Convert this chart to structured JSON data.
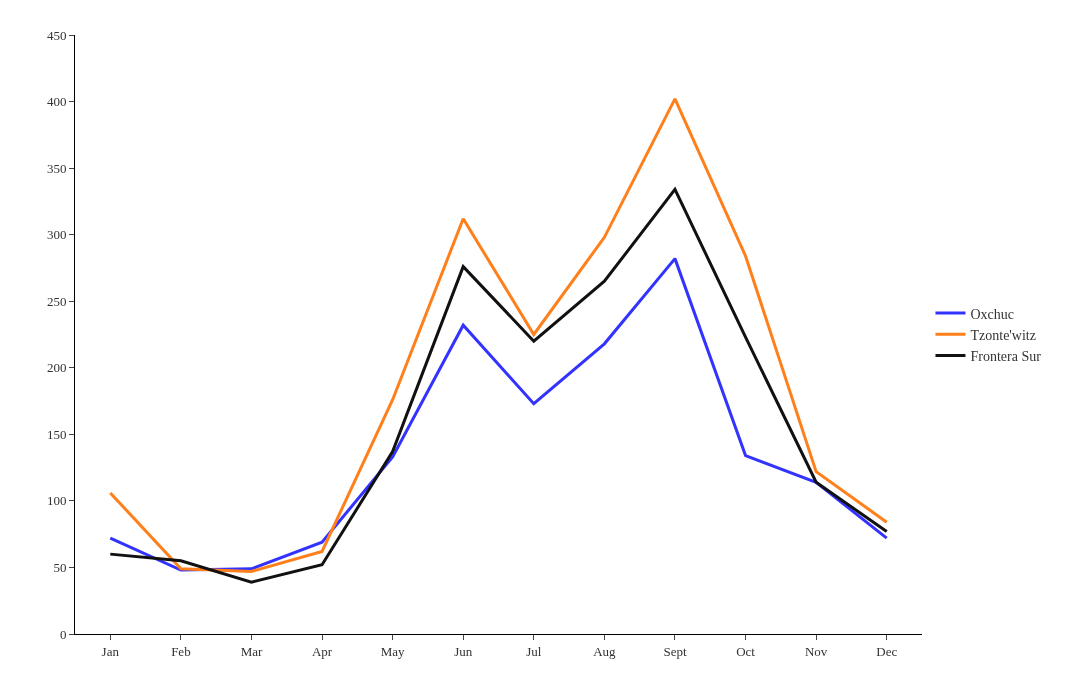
{
  "chart_data": {
    "type": "line",
    "categories": [
      "Jan",
      "Feb",
      "Mar",
      "Apr",
      "May",
      "Jun",
      "Jul",
      "Aug",
      "Sept",
      "Oct",
      "Nov",
      "Dec"
    ],
    "series": [
      {
        "name": "Oxchuc",
        "color": "#3333ff",
        "values": [
          72,
          48,
          49,
          69,
          133,
          232,
          173,
          218,
          282,
          134,
          114,
          72
        ]
      },
      {
        "name": "Tzonte'witz",
        "color": "#ff7f1a",
        "values": [
          106,
          49,
          47,
          62,
          176,
          312,
          225,
          298,
          402,
          284,
          122,
          84
        ]
      },
      {
        "name": "Frontera Sur",
        "color": "#111111",
        "values": [
          60,
          55,
          39,
          52,
          137,
          276,
          220,
          265,
          334,
          223,
          114,
          77
        ]
      }
    ],
    "ylim": [
      0,
      450
    ],
    "yticks": [
      0,
      50,
      100,
      150,
      200,
      250,
      300,
      350,
      400,
      450
    ],
    "legend": "right",
    "marker": "none",
    "line_style": "solid"
  }
}
